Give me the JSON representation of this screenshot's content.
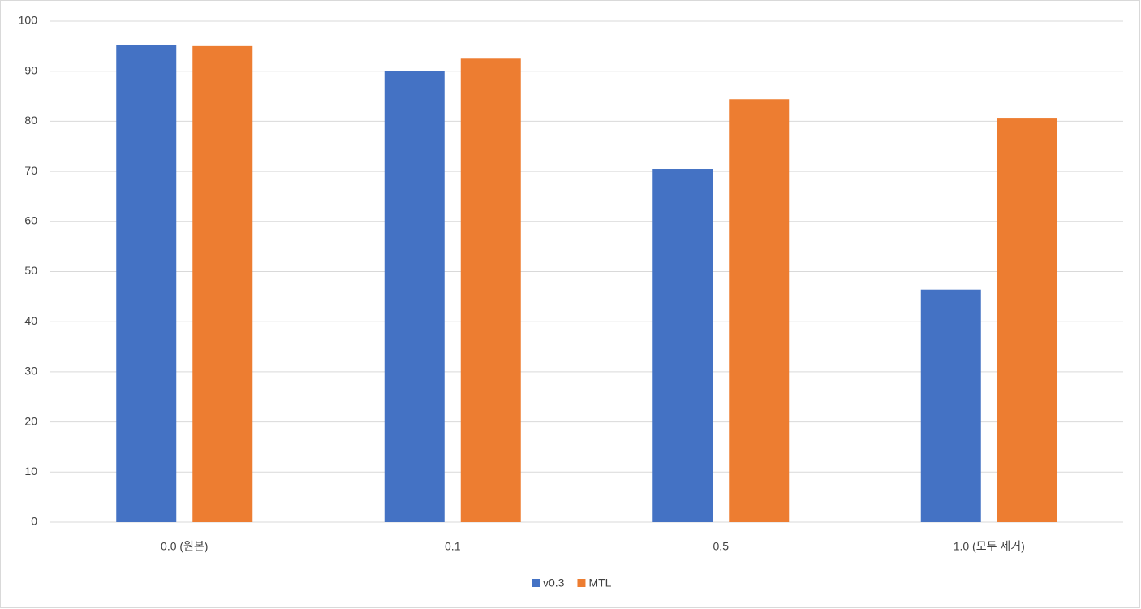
{
  "chart_data": {
    "type": "bar",
    "categories": [
      "0.0 (원본)",
      "0.1",
      "0.5",
      "1.0 (모두 제거)"
    ],
    "series": [
      {
        "name": "v0.3",
        "color": "#4472c4",
        "values": [
          95.3,
          90.1,
          70.5,
          46.4
        ]
      },
      {
        "name": "MTL",
        "color": "#ed7d31",
        "values": [
          95.0,
          92.5,
          84.4,
          80.7
        ]
      }
    ],
    "ylim": [
      0,
      100
    ],
    "yticks": [
      0,
      10,
      20,
      30,
      40,
      50,
      60,
      70,
      80,
      90,
      100
    ],
    "grid": true,
    "legend": "bottom"
  }
}
